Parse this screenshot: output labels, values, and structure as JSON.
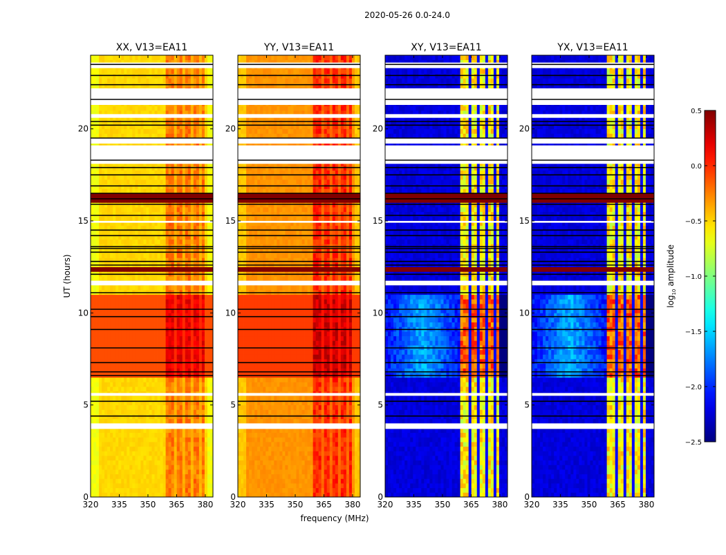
{
  "chart_data": {
    "type": "heatmap",
    "suptitle": "2020-05-26 0.0-24.0",
    "xlabel": "frequency (MHz)",
    "ylabel": "UT (hours)",
    "xlim": [
      320,
      384
    ],
    "ylim": [
      0,
      24
    ],
    "xticks": [
      "320",
      "335",
      "350",
      "365",
      "380"
    ],
    "xtick_values": [
      320,
      335,
      350,
      365,
      380
    ],
    "yticks": [
      "0",
      "5",
      "10",
      "15",
      "20"
    ],
    "ytick_values": [
      0,
      5,
      10,
      15,
      20
    ],
    "panels": [
      {
        "title": "XX, V13=EA11",
        "kind": "parallel",
        "base_low": -0.55,
        "base_high": -0.1,
        "rfi_boost": 0.35
      },
      {
        "title": "YY, V13=EA11",
        "kind": "parallel",
        "base_low": -0.35,
        "base_high": -0.05,
        "rfi_boost": 0.4
      },
      {
        "title": "XY, V13=EA11",
        "kind": "cross",
        "base_low": -2.3,
        "base_high": -1.7,
        "rfi_boost": 1.6
      },
      {
        "title": "YX, V13=EA11",
        "kind": "cross",
        "base_low": -2.3,
        "base_high": -1.7,
        "rfi_boost": 1.6
      }
    ],
    "rfi_band_mhz": [
      360,
      380
    ],
    "flagged_white_hours": [
      [
        3.7,
        4.0
      ],
      [
        5.5,
        5.65
      ],
      [
        11.5,
        11.75
      ],
      [
        14.9,
        15.0
      ],
      [
        18.1,
        19.1
      ],
      [
        19.2,
        19.5
      ],
      [
        20.6,
        20.8
      ],
      [
        21.3,
        22.2
      ],
      [
        23.3,
        23.6
      ]
    ],
    "strong_rows_hours": [
      [
        12.2,
        12.4
      ],
      [
        16.1,
        16.4
      ]
    ],
    "black_lines_hours": [
      4.4,
      5.2,
      6.6,
      6.8,
      7.3,
      8.1,
      9.1,
      9.8,
      10.2,
      11.1,
      12.1,
      12.6,
      12.8,
      13.3,
      13.5,
      13.6,
      14.2,
      14.5,
      15.3,
      15.9,
      16.2,
      16.5,
      16.9,
      17.5,
      17.9,
      18.3,
      19.5,
      20.2,
      20.4,
      21.6,
      22.4,
      22.9,
      23.5
    ],
    "colorbar": {
      "label": "log10 amplitude",
      "label_main": "log",
      "label_sub": "10",
      "label_rest": " amplitude",
      "range": [
        -2.5,
        0.5
      ],
      "ticks": [
        "0.5",
        "0.0",
        "−0.5",
        "−1.0",
        "−1.5",
        "−2.0",
        "−2.5"
      ],
      "tick_values": [
        0.5,
        0.0,
        -0.5,
        -1.0,
        -1.5,
        -2.0,
        -2.5
      ],
      "colormap": "jet"
    }
  }
}
